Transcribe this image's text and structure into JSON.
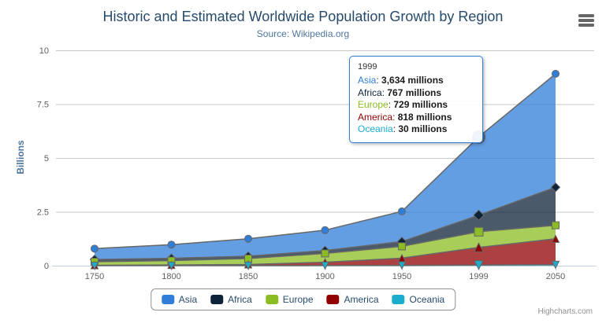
{
  "chart_data": {
    "type": "area",
    "stacking": "normal",
    "title": "Historic and Estimated Worldwide Population Growth by Region",
    "subtitle": "Source: Wikipedia.org",
    "categories": [
      "1750",
      "1800",
      "1850",
      "1900",
      "1950",
      "1999",
      "2050"
    ],
    "xlabel": "",
    "ylabel": "Billions",
    "ylim": [
      0,
      10
    ],
    "yticks": [
      0,
      2.5,
      5,
      7.5,
      10
    ],
    "ytick_labels": [
      "0",
      "2.5",
      "5",
      "7.5",
      "10"
    ],
    "values_unit": "millions",
    "series": [
      {
        "name": "Asia",
        "color": "#2f7ed8",
        "marker": "circle",
        "values": [
          502,
          635,
          809,
          947,
          1402,
          3634,
          5268
        ]
      },
      {
        "name": "Africa",
        "color": "#0d233a",
        "marker": "diamond",
        "values": [
          106,
          107,
          111,
          133,
          221,
          767,
          1766
        ]
      },
      {
        "name": "Europe",
        "color": "#8bbc21",
        "marker": "square",
        "values": [
          163,
          203,
          276,
          408,
          547,
          729,
          628
        ]
      },
      {
        "name": "America",
        "color": "#910000",
        "marker": "triangle",
        "values": [
          18,
          31,
          54,
          156,
          339,
          818,
          1201
        ]
      },
      {
        "name": "Oceania",
        "color": "#1aadce",
        "marker": "triangle-down",
        "values": [
          2,
          2,
          2,
          6,
          13,
          30,
          46
        ]
      }
    ],
    "line_color": "#666666",
    "fill_opacity": 0.75,
    "grid": true,
    "grid_color": "#c8c8c8",
    "axis_line_color": "#c0d0e0",
    "axis_text_color": "#606060",
    "legend_position": "bottom-center",
    "hovered_point": {
      "series": "Asia",
      "category": "1999"
    }
  },
  "tooltip": {
    "header": "1999",
    "border_color": "#2f7ed8",
    "rows": [
      {
        "label": "Asia",
        "color": "#2f7ed8",
        "value": "3,634 millions"
      },
      {
        "label": "Africa",
        "color": "#0d233a",
        "value": "767 millions"
      },
      {
        "label": "Europe",
        "color": "#8bbc21",
        "value": "729 millions"
      },
      {
        "label": "America",
        "color": "#910000",
        "value": "818 millions"
      },
      {
        "label": "Oceania",
        "color": "#1aadce",
        "value": "30 millions"
      }
    ]
  },
  "legend": {
    "items": [
      {
        "label": "Asia",
        "color": "#2f7ed8"
      },
      {
        "label": "Africa",
        "color": "#0d233a"
      },
      {
        "label": "Europe",
        "color": "#8bbc21"
      },
      {
        "label": "America",
        "color": "#910000"
      },
      {
        "label": "Oceania",
        "color": "#1aadce"
      }
    ]
  },
  "credits": {
    "text": "Highcharts.com"
  }
}
